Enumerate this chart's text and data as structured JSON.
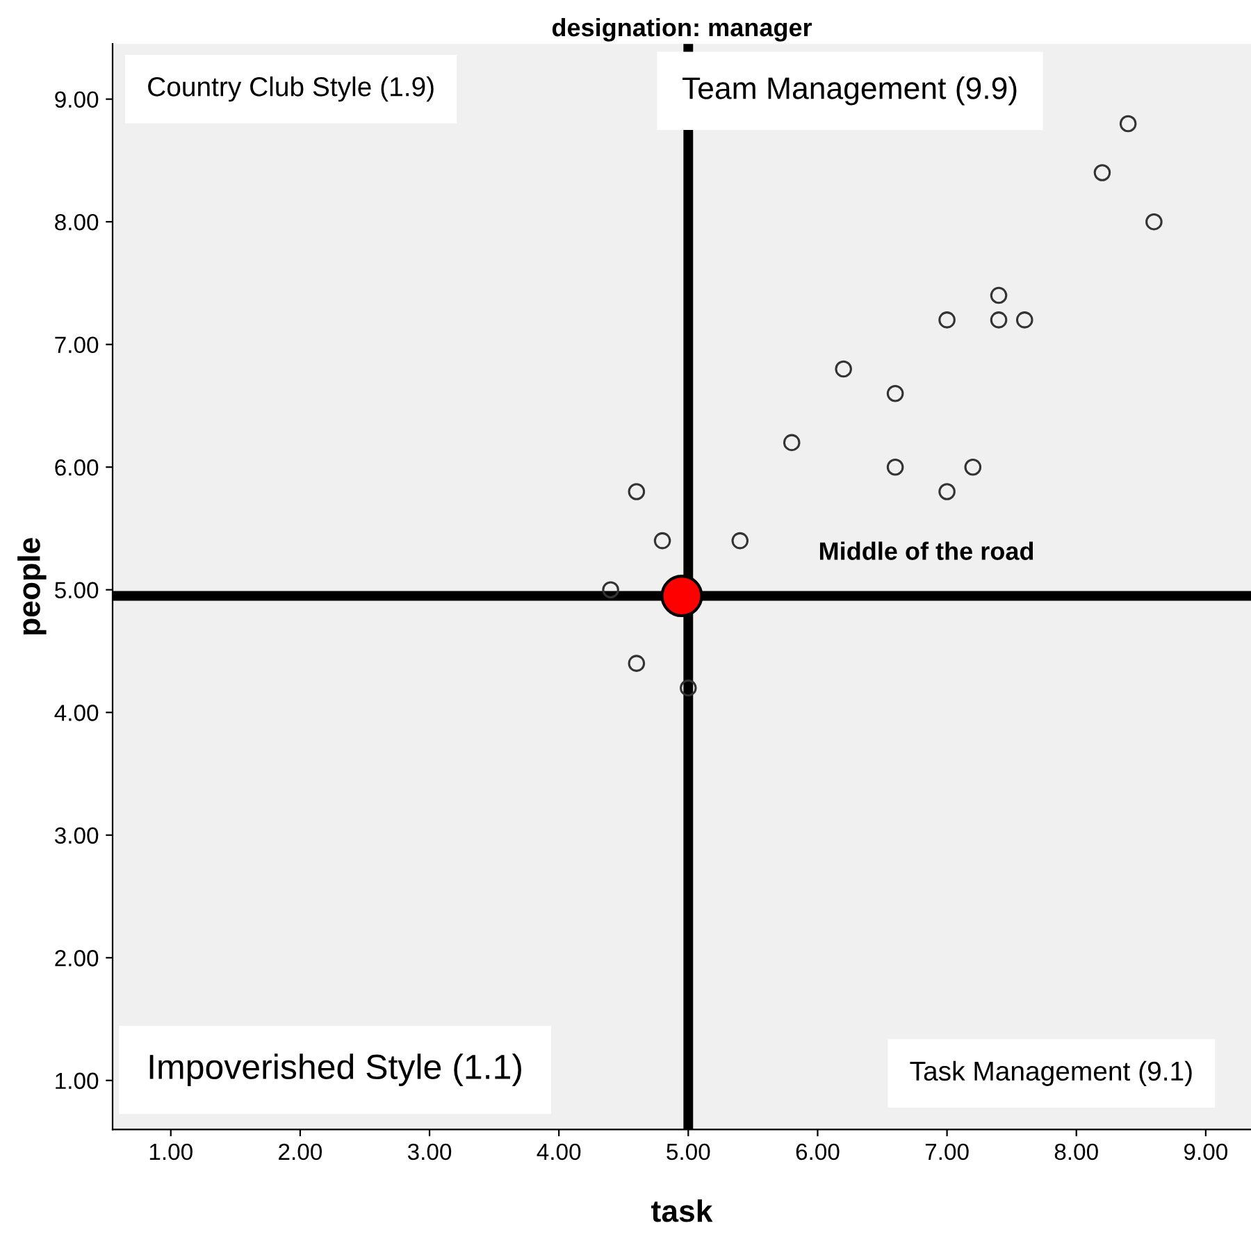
{
  "chart_data": {
    "type": "scatter",
    "title": "designation: manager",
    "xlabel": "task",
    "ylabel": "people",
    "xlim": [
      0.55,
      9.35
    ],
    "ylim": [
      0.6,
      9.45
    ],
    "xticks": [
      {
        "value": 1,
        "label": "1.00"
      },
      {
        "value": 2,
        "label": "2.00"
      },
      {
        "value": 3,
        "label": "3.00"
      },
      {
        "value": 4,
        "label": "4.00"
      },
      {
        "value": 5,
        "label": "5.00"
      },
      {
        "value": 6,
        "label": "6.00"
      },
      {
        "value": 7,
        "label": "7.00"
      },
      {
        "value": 8,
        "label": "8.00"
      },
      {
        "value": 9,
        "label": "9.00"
      }
    ],
    "yticks": [
      {
        "value": 1,
        "label": "1.00"
      },
      {
        "value": 2,
        "label": "2.00"
      },
      {
        "value": 3,
        "label": "3.00"
      },
      {
        "value": 4,
        "label": "4.00"
      },
      {
        "value": 5,
        "label": "5.00"
      },
      {
        "value": 6,
        "label": "6.00"
      },
      {
        "value": 7,
        "label": "7.00"
      },
      {
        "value": 8,
        "label": "8.00"
      },
      {
        "value": 9,
        "label": "9.00"
      }
    ],
    "grid": false,
    "marker": "circle",
    "series": [
      {
        "color": "#333333",
        "x": [
          8.4,
          8.2,
          8.6,
          7.4,
          7.0,
          7.4,
          7.6,
          6.2,
          6.6,
          5.8,
          6.6,
          7.2,
          7.0,
          4.6,
          4.8,
          5.4,
          4.4,
          4.6,
          5.0
        ],
        "values": [
          8.8,
          8.4,
          8.0,
          7.4,
          7.2,
          7.2,
          7.2,
          6.8,
          6.6,
          6.2,
          6.0,
          6.0,
          5.8,
          5.8,
          5.4,
          5.4,
          5.0,
          4.4,
          4.2
        ]
      },
      {
        "color": "#ff0000",
        "x": [
          4.95
        ],
        "values": [
          4.95
        ]
      }
    ],
    "ref_lines": [
      {
        "axis": "x",
        "value": 5,
        "color": "#000000"
      },
      {
        "axis": "y",
        "value": 4.95,
        "color": "#000000"
      }
    ],
    "annotations": [
      "Country Club Style (1.9)",
      "Team Management (9.9)",
      "Middle of the road",
      "Impoverished Style (1.1)",
      "Task Management (9.1)"
    ]
  }
}
